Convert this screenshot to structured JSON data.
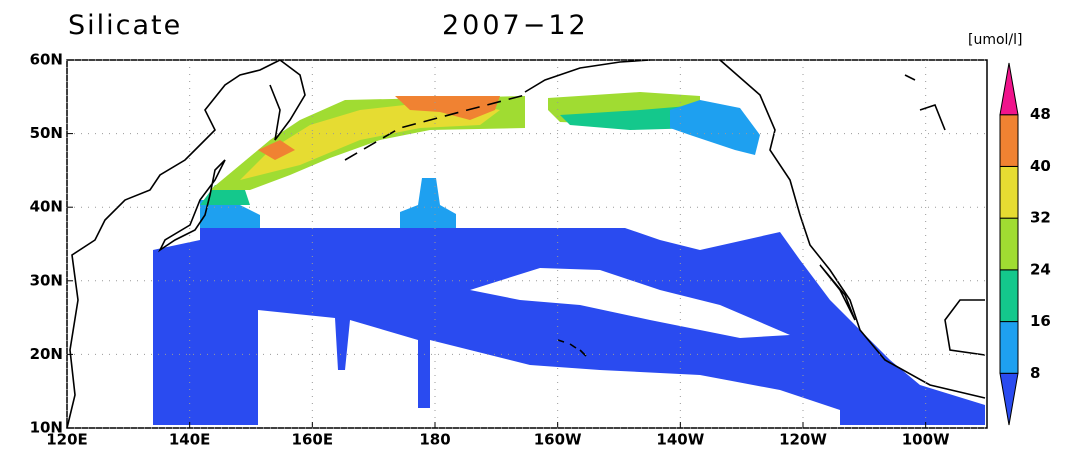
{
  "header": {
    "title": "Silicate",
    "date": "2007−12"
  },
  "map": {
    "lonlim": [
      120,
      270
    ],
    "latlim": [
      10,
      60
    ],
    "grid": true,
    "lonticks": [
      {
        "value": 120,
        "label": "120E"
      },
      {
        "value": 140,
        "label": "140E"
      },
      {
        "value": 160,
        "label": "160E"
      },
      {
        "value": 180,
        "label": "180"
      },
      {
        "value": 200,
        "label": "160W"
      },
      {
        "value": 220,
        "label": "140W"
      },
      {
        "value": 240,
        "label": "120W"
      },
      {
        "value": 260,
        "label": "100W"
      }
    ],
    "latticks": [
      {
        "value": 10,
        "label": "10N"
      },
      {
        "value": 20,
        "label": "20N"
      },
      {
        "value": 30,
        "label": "30N"
      },
      {
        "value": 40,
        "label": "40N"
      },
      {
        "value": 50,
        "label": "50N"
      },
      {
        "value": 60,
        "label": "60N"
      }
    ]
  },
  "colorbar": {
    "unit": "[umol/l]",
    "levels": [
      8,
      16,
      24,
      32,
      40,
      48
    ],
    "colors": [
      "#2a4bf0",
      "#1ea0f0",
      "#14c88c",
      "#a0dc32",
      "#e6dc32",
      "#f08232",
      "#f0148c"
    ]
  }
}
